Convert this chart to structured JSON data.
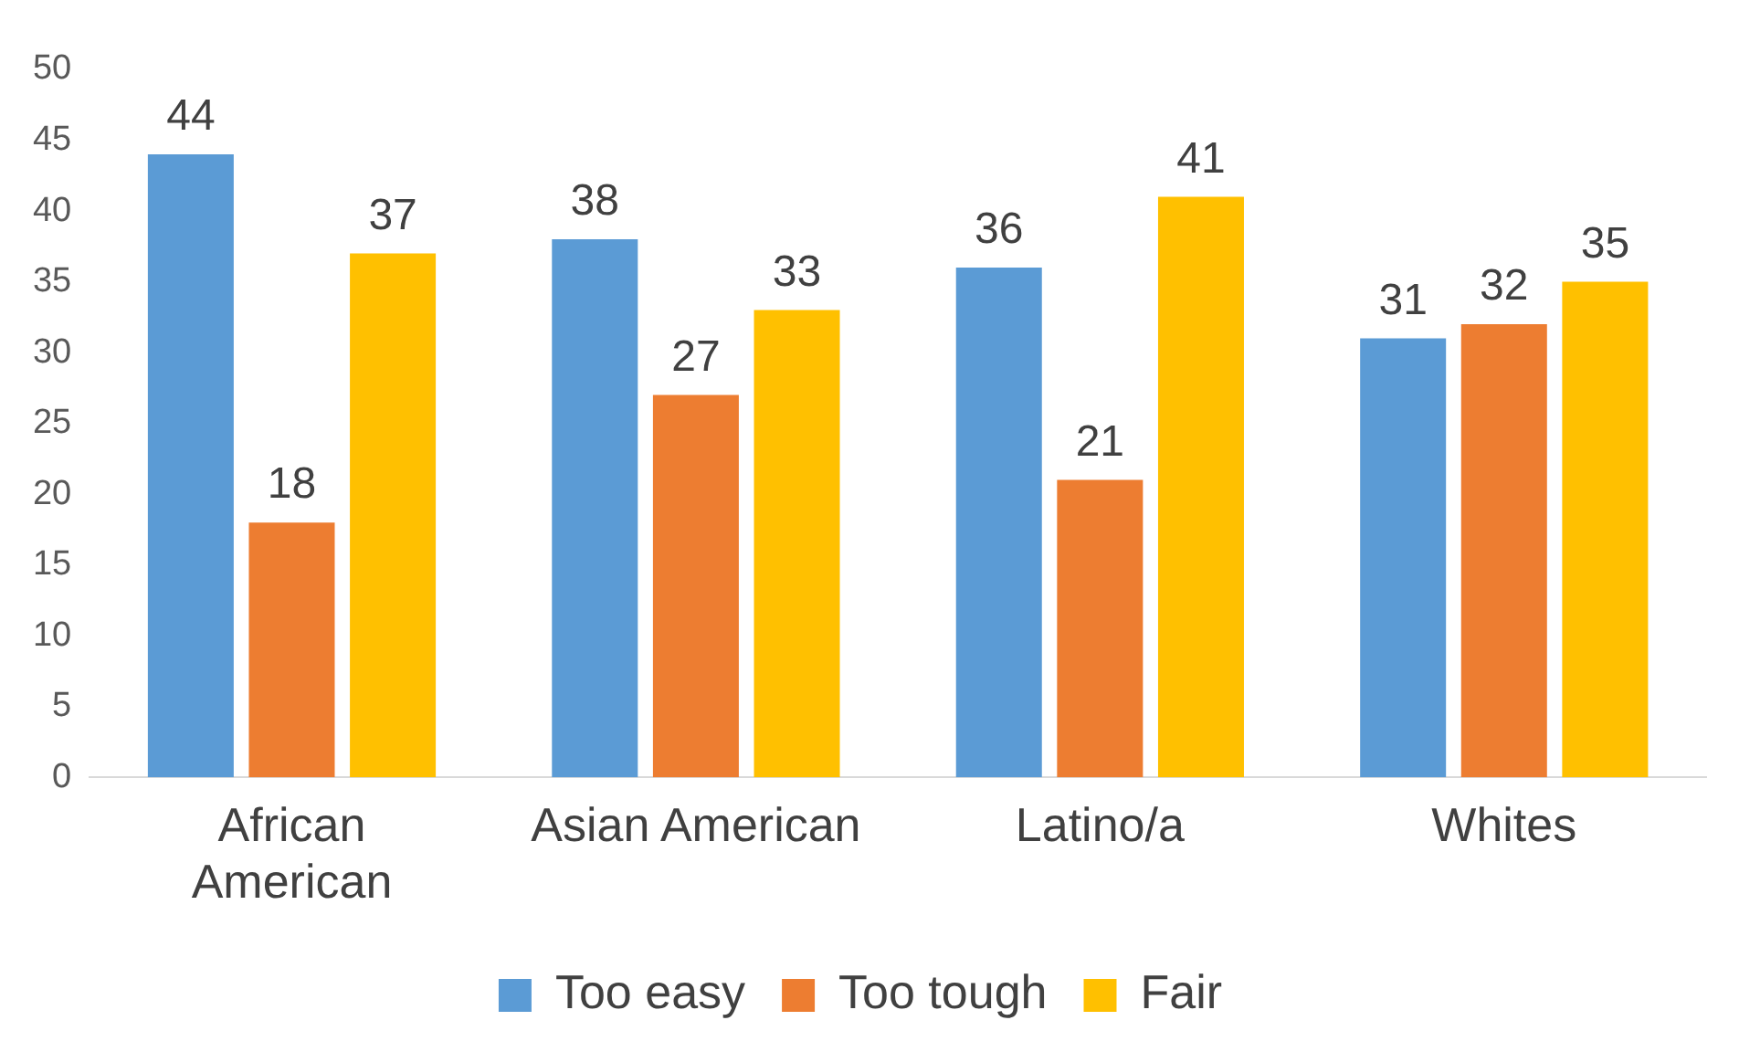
{
  "chart_data": {
    "type": "bar",
    "categories": [
      "African American",
      "Asian American",
      "Latino/a",
      "Whites"
    ],
    "series": [
      {
        "name": "Too easy",
        "color": "#5b9bd5",
        "values": [
          44,
          38,
          36,
          31
        ]
      },
      {
        "name": "Too tough",
        "color": "#ed7d31",
        "values": [
          18,
          27,
          21,
          32
        ]
      },
      {
        "name": "Fair",
        "color": "#ffc000",
        "values": [
          37,
          33,
          41,
          35
        ]
      }
    ],
    "ylim": [
      0,
      50
    ],
    "yticks": [
      0,
      5,
      10,
      15,
      20,
      25,
      30,
      35,
      40,
      45,
      50
    ],
    "grid": false,
    "legend": "bottom",
    "data_labels": true
  }
}
